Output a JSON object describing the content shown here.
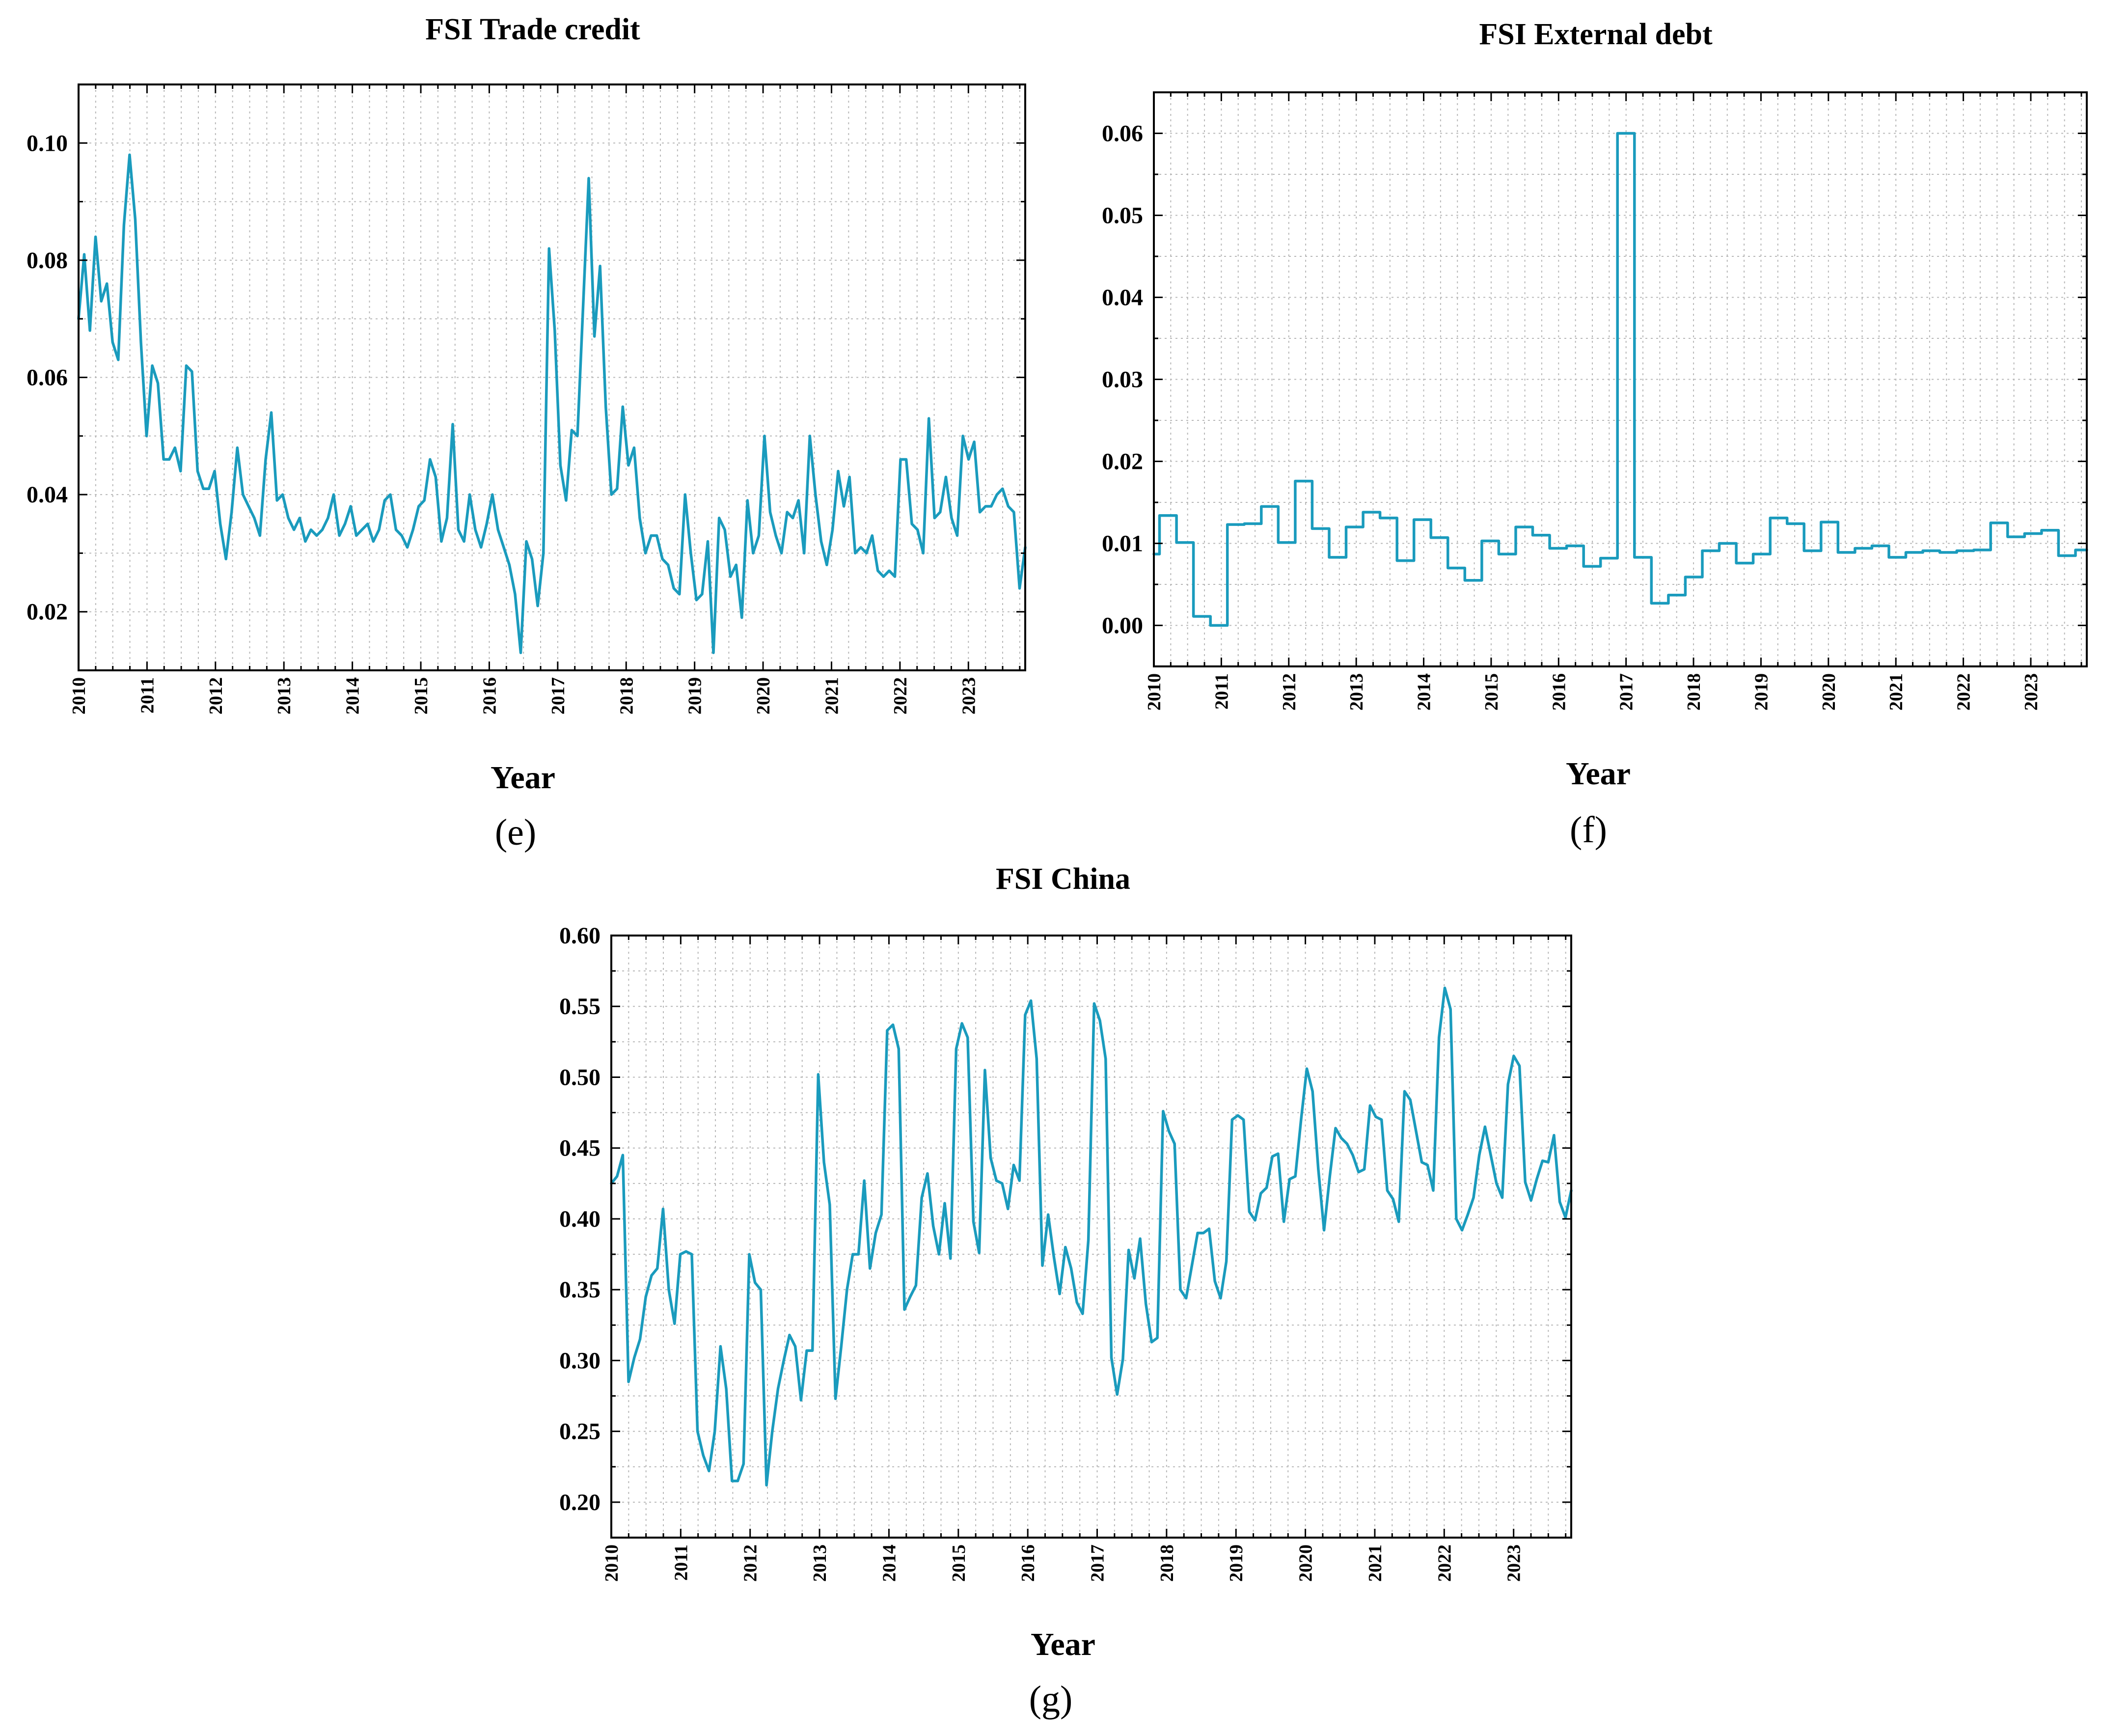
{
  "figure": {
    "panels": [
      {
        "label": "(e)"
      },
      {
        "label": "(f)"
      },
      {
        "label": "(g)"
      }
    ]
  },
  "colors": {
    "series": "#1a9bbd",
    "axes": "#000000",
    "grid": "#b8b8b8"
  },
  "chart_data": [
    {
      "type": "line",
      "title": "FSI Trade credit",
      "xlabel": "Year",
      "ylabel": "",
      "grid": true,
      "xlim": [
        2010,
        2023.83
      ],
      "ylim": [
        0.01,
        0.11
      ],
      "xticks": [
        "2010",
        "2011",
        "2012",
        "2013",
        "2014",
        "2015",
        "2016",
        "2017",
        "2018",
        "2019",
        "2020",
        "2021",
        "2022",
        "2023"
      ],
      "yticks": [
        "0.02",
        "0.04",
        "0.06",
        "0.08",
        "0.10"
      ],
      "series": [
        {
          "name": "FSI Trade credit",
          "values": [
            0.07,
            0.081,
            0.068,
            0.084,
            0.073,
            0.076,
            0.066,
            0.063,
            0.086,
            0.098,
            0.087,
            0.066,
            0.05,
            0.062,
            0.059,
            0.046,
            0.046,
            0.048,
            0.044,
            0.062,
            0.061,
            0.044,
            0.041,
            0.041,
            0.044,
            0.035,
            0.029,
            0.037,
            0.048,
            0.04,
            0.038,
            0.036,
            0.033,
            0.046,
            0.054,
            0.039,
            0.04,
            0.036,
            0.034,
            0.036,
            0.032,
            0.034,
            0.033,
            0.034,
            0.036,
            0.04,
            0.033,
            0.035,
            0.038,
            0.033,
            0.034,
            0.035,
            0.032,
            0.034,
            0.039,
            0.04,
            0.034,
            0.033,
            0.031,
            0.034,
            0.038,
            0.039,
            0.046,
            0.043,
            0.032,
            0.036,
            0.052,
            0.034,
            0.032,
            0.04,
            0.034,
            0.031,
            0.035,
            0.04,
            0.034,
            0.031,
            0.028,
            0.023,
            0.013,
            0.032,
            0.029,
            0.021,
            0.03,
            0.082,
            0.068,
            0.045,
            0.039,
            0.051,
            0.05,
            0.072,
            0.094,
            0.067,
            0.079,
            0.055,
            0.04,
            0.041,
            0.055,
            0.045,
            0.048,
            0.036,
            0.03,
            0.033,
            0.033,
            0.029,
            0.028,
            0.024,
            0.023,
            0.04,
            0.03,
            0.022,
            0.023,
            0.032,
            0.013,
            0.036,
            0.034,
            0.026,
            0.028,
            0.019,
            0.039,
            0.03,
            0.033,
            0.05,
            0.037,
            0.033,
            0.03,
            0.037,
            0.036,
            0.039,
            0.03,
            0.05,
            0.04,
            0.032,
            0.028,
            0.034,
            0.044,
            0.038,
            0.043,
            0.03,
            0.031,
            0.03,
            0.033,
            0.027,
            0.026,
            0.027,
            0.026,
            0.046,
            0.046,
            0.035,
            0.034,
            0.03,
            0.053,
            0.036,
            0.037,
            0.043,
            0.036,
            0.033,
            0.05,
            0.046,
            0.049,
            0.037,
            0.038,
            0.038,
            0.04,
            0.041,
            0.038,
            0.037,
            0.024,
            0.031
          ]
        }
      ]
    },
    {
      "type": "line",
      "title": "FSI External debt",
      "xlabel": "Year",
      "ylabel": "",
      "grid": true,
      "xlim": [
        2010,
        2023.83
      ],
      "ylim": [
        -0.005,
        0.065
      ],
      "xticks": [
        "2010",
        "2011",
        "2012",
        "2013",
        "2014",
        "2015",
        "2016",
        "2017",
        "2018",
        "2019",
        "2020",
        "2021",
        "2022",
        "2023"
      ],
      "yticks": [
        "0.00",
        "0.01",
        "0.02",
        "0.03",
        "0.04",
        "0.05",
        "0.06"
      ],
      "series": [
        {
          "name": "FSI External debt",
          "step": true,
          "values": [
            0.0087,
            0.0087,
            0.0134,
            0.0134,
            0.0134,
            0.0101,
            0.0101,
            0.0101,
            0.0011,
            0.0011,
            0.0011,
            0.0,
            0.0,
            0.0,
            0.0123,
            0.0123,
            0.0123,
            0.0124,
            0.0124,
            0.0124,
            0.0145,
            0.0145,
            0.0145,
            0.0101,
            0.0101,
            0.0101,
            0.0176,
            0.0176,
            0.0176,
            0.0118,
            0.0118,
            0.0118,
            0.0083,
            0.0083,
            0.0083,
            0.012,
            0.012,
            0.012,
            0.0138,
            0.0138,
            0.0138,
            0.0131,
            0.0131,
            0.0131,
            0.0079,
            0.0079,
            0.0079,
            0.0129,
            0.0129,
            0.0129,
            0.0107,
            0.0107,
            0.0107,
            0.007,
            0.007,
            0.007,
            0.0055,
            0.0055,
            0.0055,
            0.0103,
            0.0103,
            0.0103,
            0.0087,
            0.0087,
            0.0087,
            0.012,
            0.012,
            0.012,
            0.011,
            0.011,
            0.011,
            0.0094,
            0.0094,
            0.0094,
            0.0097,
            0.0097,
            0.0097,
            0.0072,
            0.0072,
            0.0072,
            0.0082,
            0.0082,
            0.0082,
            0.06,
            0.06,
            0.06,
            0.0083,
            0.0083,
            0.0083,
            0.0027,
            0.0027,
            0.0027,
            0.0037,
            0.0037,
            0.0037,
            0.0059,
            0.0059,
            0.0059,
            0.0091,
            0.0091,
            0.0091,
            0.01,
            0.01,
            0.01,
            0.0076,
            0.0076,
            0.0076,
            0.0087,
            0.0087,
            0.0087,
            0.0131,
            0.0131,
            0.0131,
            0.0124,
            0.0124,
            0.0124,
            0.0091,
            0.0091,
            0.0091,
            0.0126,
            0.0126,
            0.0126,
            0.0089,
            0.0089,
            0.0089,
            0.0094,
            0.0094,
            0.0094,
            0.0097,
            0.0097,
            0.0097,
            0.0083,
            0.0083,
            0.0083,
            0.0089,
            0.0089,
            0.0089,
            0.0091,
            0.0091,
            0.0091,
            0.0089,
            0.0089,
            0.0089,
            0.0091,
            0.0091,
            0.0091,
            0.0092,
            0.0092,
            0.0092,
            0.0125,
            0.0125,
            0.0125,
            0.0108,
            0.0108,
            0.0108,
            0.0112,
            0.0112,
            0.0112,
            0.0116,
            0.0116,
            0.0116,
            0.0085,
            0.0085,
            0.0085,
            0.0092,
            0.0092
          ]
        }
      ]
    },
    {
      "type": "line",
      "title": "FSI China",
      "xlabel": "Year",
      "ylabel": "",
      "grid": true,
      "xlim": [
        2010,
        2023.83
      ],
      "ylim": [
        0.175,
        0.6
      ],
      "xticks": [
        "2010",
        "2011",
        "2012",
        "2013",
        "2014",
        "2015",
        "2016",
        "2017",
        "2018",
        "2019",
        "2020",
        "2021",
        "2022",
        "2023"
      ],
      "yticks": [
        "0.20",
        "0.25",
        "0.30",
        "0.35",
        "0.40",
        "0.45",
        "0.50",
        "0.55",
        "0.60"
      ],
      "series": [
        {
          "name": "FSI China",
          "values": [
            0.425,
            0.43,
            0.445,
            0.285,
            0.302,
            0.315,
            0.345,
            0.36,
            0.365,
            0.407,
            0.35,
            0.326,
            0.375,
            0.377,
            0.375,
            0.25,
            0.233,
            0.222,
            0.25,
            0.31,
            0.28,
            0.215,
            0.215,
            0.227,
            0.375,
            0.355,
            0.35,
            0.212,
            0.25,
            0.28,
            0.3,
            0.318,
            0.31,
            0.272,
            0.307,
            0.307,
            0.502,
            0.44,
            0.41,
            0.273,
            0.31,
            0.35,
            0.375,
            0.375,
            0.427,
            0.365,
            0.39,
            0.403,
            0.533,
            0.537,
            0.52,
            0.336,
            0.345,
            0.353,
            0.415,
            0.432,
            0.395,
            0.375,
            0.411,
            0.372,
            0.52,
            0.538,
            0.528,
            0.398,
            0.376,
            0.505,
            0.443,
            0.427,
            0.425,
            0.407,
            0.438,
            0.427,
            0.544,
            0.554,
            0.513,
            0.367,
            0.403,
            0.373,
            0.347,
            0.38,
            0.365,
            0.341,
            0.333,
            0.385,
            0.552,
            0.54,
            0.513,
            0.302,
            0.276,
            0.301,
            0.378,
            0.358,
            0.386,
            0.34,
            0.313,
            0.316,
            0.476,
            0.462,
            0.453,
            0.35,
            0.344,
            0.367,
            0.39,
            0.39,
            0.393,
            0.356,
            0.344,
            0.37,
            0.47,
            0.473,
            0.47,
            0.405,
            0.399,
            0.418,
            0.422,
            0.444,
            0.446,
            0.398,
            0.428,
            0.43,
            0.47,
            0.506,
            0.49,
            0.435,
            0.392,
            0.43,
            0.464,
            0.457,
            0.453,
            0.445,
            0.433,
            0.435,
            0.48,
            0.472,
            0.47,
            0.42,
            0.414,
            0.398,
            0.49,
            0.484,
            0.462,
            0.44,
            0.438,
            0.42,
            0.528,
            0.563,
            0.548,
            0.4,
            0.392,
            0.403,
            0.415,
            0.445,
            0.465,
            0.445,
            0.425,
            0.415,
            0.495,
            0.515,
            0.508,
            0.426,
            0.413,
            0.428,
            0.441,
            0.44,
            0.459,
            0.412,
            0.401,
            0.42
          ]
        }
      ]
    }
  ]
}
